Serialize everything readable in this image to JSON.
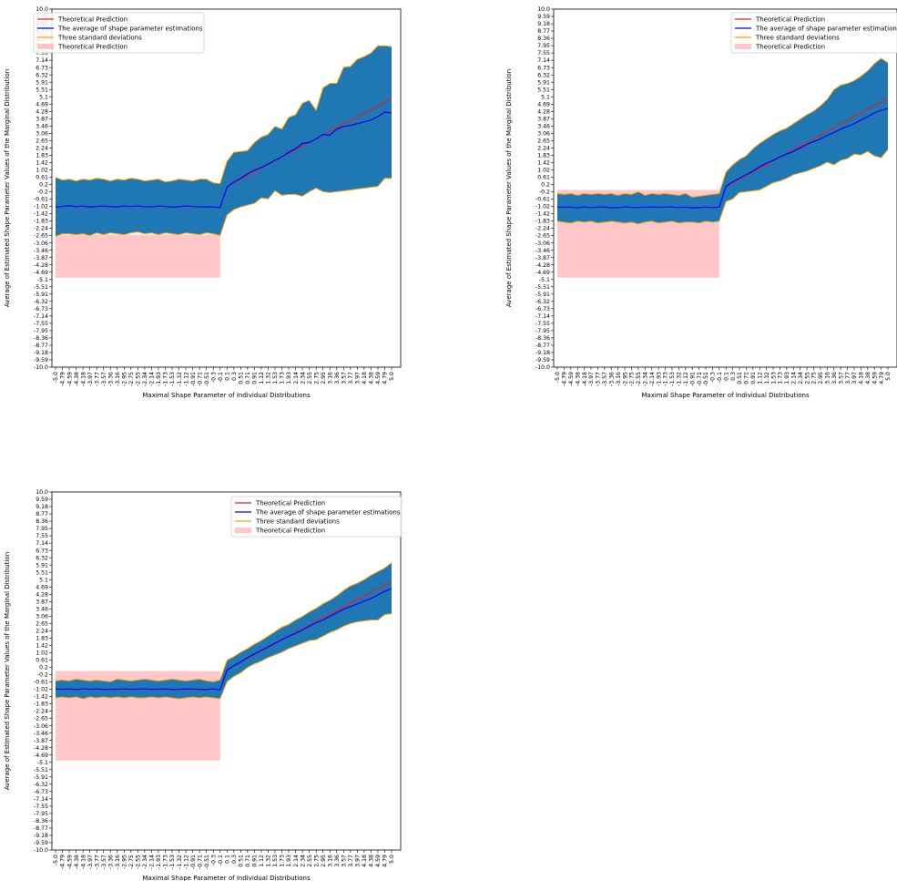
{
  "figure": {
    "background": "#ffffff"
  },
  "colors": {
    "theory_line": "#d62728",
    "mean_line": "#0000ff",
    "std_fill": "#1f77b4",
    "std_edge": "#ffa500",
    "pred_fill": "#ff9999"
  },
  "legend_labels": [
    "Theoretical Prediction",
    "The average of shape parameter estimations",
    "Three standard deviations",
    "Theoretical Prediction"
  ],
  "y_ticks": [
    "10.0",
    "9.59",
    "9.18",
    "8.77",
    "8.36",
    "7.95",
    "7.55",
    "7.14",
    "6.73",
    "6.32",
    "5.91",
    "5.51",
    "5.1",
    "4.69",
    "4.28",
    "3.87",
    "3.46",
    "3.06",
    "2.65",
    "2.24",
    "1.83",
    "1.42",
    "1.02",
    "0.61",
    "0.2",
    "-0.2",
    "-0.61",
    "-1.02",
    "-1.42",
    "-1.83",
    "-2.24",
    "-2.65",
    "-3.06",
    "-3.46",
    "-3.87",
    "-4.28",
    "-4.69",
    "-5.1",
    "-5.51",
    "-5.91",
    "-6.32",
    "-6.73",
    "-7.14",
    "-7.55",
    "-7.95",
    "-8.36",
    "-8.77",
    "-9.18",
    "-9.59",
    "-10.0"
  ],
  "x_ticks": [
    "-5.0",
    "-4.79",
    "-4.59",
    "-4.38",
    "-4.18",
    "-3.97",
    "-3.77",
    "-3.57",
    "-3.36",
    "-3.16",
    "-2.95",
    "-2.75",
    "-2.55",
    "-2.34",
    "-2.14",
    "-1.93",
    "-1.73",
    "-1.53",
    "-1.32",
    "-1.12",
    "-0.91",
    "-0.71",
    "-0.51",
    "-0.3",
    "-0.1",
    "0.1",
    "0.3",
    "0.51",
    "0.71",
    "0.91",
    "1.12",
    "1.32",
    "1.53",
    "1.73",
    "1.93",
    "2.14",
    "2.34",
    "2.55",
    "2.75",
    "2.95",
    "3.16",
    "3.36",
    "3.57",
    "3.77",
    "3.97",
    "4.18",
    "4.38",
    "4.59",
    "4.79",
    "5.0"
  ],
  "chart_data": [
    {
      "type": "line",
      "xlabel": "Maximal Shape Parameter of Individual Distributions",
      "ylabel": "Average of Estimated Shape Parameter Values of the Marginal Distribution",
      "ylim": [
        -10,
        10
      ],
      "legend": "top-left",
      "theory_shade": {
        "x": [
          -5.0,
          -0.1
        ],
        "y": [
          -5.0,
          -2.6
        ]
      },
      "series": [
        {
          "name": "Theoretical Prediction",
          "x": [
            0.1,
            5.0
          ],
          "values": [
            0.1,
            5.0
          ]
        },
        {
          "name": "The average of shape parameter estimations",
          "values": [
            -1.05,
            -1.02,
            -0.98,
            -1.03,
            -1.0,
            -1.05,
            -1.02,
            -1.0,
            -1.03,
            -1.05,
            -1.0,
            -1.02,
            -1.0,
            -1.03,
            -1.04,
            -1.0,
            -1.02,
            -1.06,
            -1.03,
            -1.0,
            -1.02,
            -1.04,
            -1.05,
            -1.06,
            -1.08,
            0.05,
            0.35,
            0.55,
            0.8,
            1.0,
            1.15,
            1.35,
            1.55,
            1.75,
            2.0,
            2.2,
            2.5,
            2.55,
            2.75,
            3.0,
            2.95,
            3.3,
            3.45,
            3.5,
            3.6,
            3.7,
            3.8,
            4.0,
            4.25,
            4.2
          ]
        },
        {
          "name": "Three standard deviations",
          "upper": [
            0.6,
            0.45,
            0.5,
            0.4,
            0.5,
            0.45,
            0.55,
            0.5,
            0.4,
            0.5,
            0.45,
            0.55,
            0.5,
            0.4,
            0.45,
            0.5,
            0.35,
            0.4,
            0.5,
            0.45,
            0.4,
            0.5,
            0.5,
            0.3,
            0.25,
            1.5,
            2.0,
            2.05,
            2.1,
            2.55,
            2.85,
            3.0,
            3.45,
            3.3,
            3.95,
            4.1,
            4.75,
            4.9,
            4.35,
            5.6,
            5.85,
            5.85,
            6.75,
            6.8,
            7.2,
            7.35,
            7.55,
            7.95,
            7.95,
            7.9
          ],
          "lower": [
            -2.7,
            -2.55,
            -2.55,
            -2.6,
            -2.55,
            -2.65,
            -2.5,
            -2.6,
            -2.5,
            -2.55,
            -2.6,
            -2.5,
            -2.45,
            -2.55,
            -2.5,
            -2.6,
            -2.5,
            -2.55,
            -2.6,
            -2.5,
            -2.55,
            -2.6,
            -2.5,
            -2.55,
            -2.65,
            -1.5,
            -1.2,
            -1.05,
            -0.95,
            -0.85,
            -0.55,
            -0.6,
            -0.15,
            -0.4,
            -0.35,
            -0.35,
            -0.45,
            -0.2,
            0.0,
            -0.2,
            -0.25,
            -0.2,
            -0.15,
            -0.1,
            -0.05,
            0.0,
            0.05,
            0.1,
            0.55,
            0.55
          ]
        }
      ]
    },
    {
      "type": "line",
      "xlabel": "Maximal Shape Parameter of Individual Distributions",
      "ylabel": "Average of Estimated Shape Parameter Values of the Marginal Distribution",
      "ylim": [
        -10,
        10
      ],
      "legend": "top-right",
      "theory_shade": {
        "x": [
          -5.0,
          -0.1
        ],
        "y": [
          -5.0,
          -0.1
        ]
      },
      "series": [
        {
          "name": "Theoretical Prediction",
          "x": [
            0.1,
            5.0
          ],
          "values": [
            0.1,
            5.0
          ]
        },
        {
          "name": "The average of shape parameter estimations",
          "values": [
            -1.05,
            -1.07,
            -1.06,
            -1.1,
            -1.05,
            -1.08,
            -1.06,
            -1.05,
            -1.1,
            -1.08,
            -1.05,
            -1.07,
            -1.08,
            -1.06,
            -1.05,
            -1.07,
            -1.06,
            -1.05,
            -1.08,
            -1.06,
            -1.1,
            -1.08,
            -1.06,
            -1.08,
            -1.06,
            0.1,
            0.35,
            0.55,
            0.75,
            0.95,
            1.2,
            1.4,
            1.55,
            1.75,
            1.9,
            2.05,
            2.25,
            2.45,
            2.6,
            2.75,
            2.95,
            3.1,
            3.3,
            3.45,
            3.6,
            3.8,
            4.0,
            4.2,
            4.35,
            4.45
          ]
        },
        {
          "name": "Three standard deviations",
          "upper": [
            -0.3,
            -0.35,
            -0.3,
            -0.4,
            -0.3,
            -0.35,
            -0.3,
            -0.35,
            -0.3,
            -0.4,
            -0.3,
            -0.35,
            -0.2,
            -0.4,
            -0.3,
            -0.35,
            -0.3,
            -0.35,
            -0.4,
            -0.3,
            -0.5,
            -0.45,
            -0.4,
            -0.35,
            -0.3,
            0.9,
            1.3,
            1.6,
            1.8,
            2.2,
            2.5,
            2.75,
            3.0,
            3.2,
            3.35,
            3.6,
            3.85,
            4.1,
            4.3,
            4.6,
            4.95,
            5.5,
            5.75,
            5.85,
            6.0,
            6.25,
            6.55,
            6.95,
            7.25,
            7.0
          ],
          "lower": [
            -1.85,
            -1.9,
            -1.95,
            -1.85,
            -1.9,
            -1.85,
            -1.95,
            -1.9,
            -1.85,
            -1.9,
            -1.95,
            -1.9,
            -2.0,
            -1.9,
            -1.85,
            -1.95,
            -1.9,
            -1.85,
            -1.95,
            -1.9,
            -1.9,
            -1.95,
            -1.85,
            -1.9,
            -1.85,
            -0.75,
            -0.6,
            -0.25,
            -0.2,
            -0.15,
            -0.1,
            0.1,
            0.3,
            0.4,
            0.55,
            0.75,
            0.85,
            0.95,
            1.1,
            1.25,
            1.45,
            1.3,
            1.55,
            1.65,
            1.9,
            1.85,
            2.05,
            1.8,
            1.7,
            2.15
          ]
        }
      ]
    },
    {
      "type": "line",
      "xlabel": "Maximal Shape Parameter of Individual Distributions",
      "ylabel": "Average of Estimated Shape Parameter Values of the Marginal Distribution",
      "ylim": [
        -10,
        10
      ],
      "legend": "top-right",
      "theory_shade": {
        "x": [
          -5.0,
          -0.1
        ],
        "y": [
          -5.0,
          0.0
        ]
      },
      "series": [
        {
          "name": "Theoretical Prediction",
          "x": [
            0.1,
            5.0
          ],
          "values": [
            0.1,
            5.0
          ]
        },
        {
          "name": "The average of shape parameter estimations",
          "values": [
            -1.0,
            -1.02,
            -1.0,
            -1.03,
            -1.0,
            -1.02,
            -1.0,
            -1.03,
            -1.01,
            -1.02,
            -1.0,
            -1.02,
            -1.01,
            -1.0,
            -1.02,
            -1.01,
            -1.0,
            -1.03,
            -1.02,
            -1.0,
            -1.01,
            -1.02,
            -1.03,
            -1.0,
            -1.05,
            0.05,
            0.3,
            0.5,
            0.75,
            0.95,
            1.15,
            1.35,
            1.55,
            1.75,
            1.95,
            2.1,
            2.3,
            2.5,
            2.7,
            2.85,
            3.05,
            3.25,
            3.45,
            3.6,
            3.75,
            3.9,
            4.05,
            4.25,
            4.45,
            4.6
          ]
        },
        {
          "name": "Three standard deviations",
          "upper": [
            -0.55,
            -0.5,
            -0.55,
            -0.45,
            -0.5,
            -0.55,
            -0.5,
            -0.55,
            -0.6,
            -0.45,
            -0.5,
            -0.55,
            -0.5,
            -0.45,
            -0.5,
            -0.55,
            -0.5,
            -0.45,
            -0.5,
            -0.55,
            -0.5,
            -0.45,
            -0.55,
            -0.6,
            -0.5,
            0.6,
            0.8,
            1.05,
            1.25,
            1.5,
            1.7,
            1.95,
            2.2,
            2.45,
            2.6,
            2.85,
            3.05,
            3.3,
            3.5,
            3.75,
            3.95,
            4.2,
            4.5,
            4.75,
            4.9,
            5.1,
            5.35,
            5.55,
            5.75,
            6.05
          ],
          "lower": [
            -1.5,
            -1.45,
            -1.5,
            -1.45,
            -1.55,
            -1.45,
            -1.5,
            -1.45,
            -1.5,
            -1.45,
            -1.5,
            -1.45,
            -1.5,
            -1.5,
            -1.45,
            -1.5,
            -1.45,
            -1.5,
            -1.55,
            -1.5,
            -1.45,
            -1.5,
            -1.45,
            -1.5,
            -1.55,
            -0.6,
            -0.3,
            -0.1,
            0.2,
            0.4,
            0.55,
            0.75,
            0.9,
            1.05,
            1.25,
            1.4,
            1.55,
            1.7,
            1.75,
            1.95,
            2.15,
            2.3,
            2.5,
            2.65,
            2.75,
            2.8,
            2.85,
            2.85,
            3.15,
            3.2
          ]
        }
      ]
    }
  ]
}
